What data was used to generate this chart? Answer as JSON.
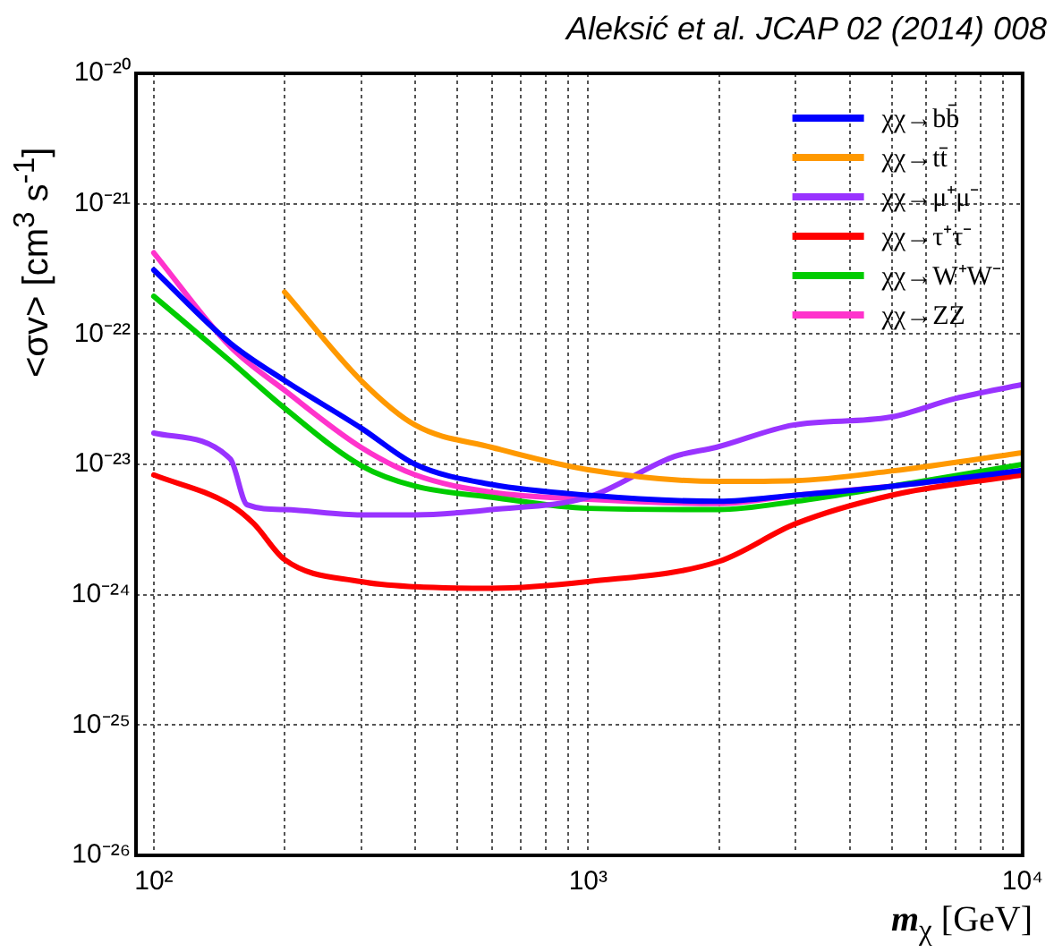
{
  "chart_data": {
    "type": "line",
    "xlabel": "m$_{χ}$ [GeV]",
    "ylabel": "<σv> [cm$^{3}$ s$^{-1}$]",
    "annotations": [
      "Aleksić et al. JCAP 02 (2014) 008"
    ],
    "log": "xy",
    "grid": true,
    "legend": "top right",
    "marker": "none",
    "line_style": "solid",
    "xlim": [
      91,
      10000
    ],
    "ylim": [
      1e-26,
      1e-20
    ],
    "xticks": [
      {
        "value": 100,
        "label": "10²"
      },
      {
        "value": 200,
        "label": null
      },
      {
        "value": 300,
        "label": null
      },
      {
        "value": 400,
        "label": null
      },
      {
        "value": 500,
        "label": null
      },
      {
        "value": 600,
        "label": null
      },
      {
        "value": 700,
        "label": null
      },
      {
        "value": 800,
        "label": null
      },
      {
        "value": 900,
        "label": null
      },
      {
        "value": 1000,
        "label": "10³"
      },
      {
        "value": 2000,
        "label": null
      },
      {
        "value": 3000,
        "label": null
      },
      {
        "value": 4000,
        "label": null
      },
      {
        "value": 5000,
        "label": null
      },
      {
        "value": 6000,
        "label": null
      },
      {
        "value": 7000,
        "label": null
      },
      {
        "value": 8000,
        "label": null
      },
      {
        "value": 9000,
        "label": null
      },
      {
        "value": 10000,
        "label": "10⁴"
      }
    ],
    "yticks": [
      {
        "value": 1e-26,
        "label": "10⁻²⁶"
      },
      {
        "value": 1e-25,
        "label": "10⁻²⁵"
      },
      {
        "value": 1e-24,
        "label": "10⁻²⁴"
      },
      {
        "value": 1e-23,
        "label": "10⁻²³"
      },
      {
        "value": 1e-22,
        "label": "10⁻²²"
      },
      {
        "value": 1e-21,
        "label": "10⁻²¹"
      },
      {
        "value": 1e-20,
        "label": "10⁻²⁰"
      }
    ],
    "x": [
      100,
      150,
      200,
      300,
      400,
      600,
      1000,
      2000,
      3000,
      5000,
      10000
    ],
    "series": [
      {
        "name": "χχ→bb̄",
        "color": "#0000ff",
        "values": [
          3.1e-22,
          8.5e-23,
          4.4e-23,
          1.9e-23,
          1e-23,
          7e-24,
          5.8e-24,
          5.2e-24,
          5.8e-24,
          6.8e-24,
          9e-24
        ]
      },
      {
        "name": "χχ→tt̄",
        "color": "#ff9900",
        "values": [
          null,
          null,
          2.1e-22,
          4.4e-23,
          2e-23,
          1.35e-23,
          9.1e-24,
          7.4e-24,
          7.5e-24,
          8.9e-24,
          1.23e-23
        ]
      },
      {
        "name": "χχ→μ⁺μ⁻",
        "color": "#9933ff",
        "x": [
          100,
          150,
          164,
          200,
          300,
          400,
          600,
          1000,
          1580,
          1970,
          2960,
          4950,
          7000,
          10000
        ],
        "values": [
          1.74e-23,
          1.1e-23,
          4.9e-24,
          4.5e-24,
          4.1e-24,
          4.1e-24,
          4.5e-24,
          5.6e-24,
          1.15e-23,
          1.35e-23,
          2e-23,
          2.3e-23,
          3.2e-23,
          4.1e-23
        ]
      },
      {
        "name": "χχ→τ⁺τ⁻",
        "color": "#ff0000",
        "x": [
          100,
          150,
          170,
          200,
          300,
          400,
          600,
          1000,
          2000,
          3000,
          5000,
          10000
        ],
        "values": [
          8.3e-24,
          4.9e-24,
          3.5e-24,
          1.86e-24,
          1.26e-24,
          1.15e-24,
          1.12e-24,
          1.26e-24,
          1.8e-24,
          3.5e-24,
          5.8e-24,
          8.3e-24
        ]
      },
      {
        "name": "χχ→W⁺W⁻",
        "color": "#00cc00",
        "values": [
          1.95e-22,
          6.2e-23,
          2.7e-23,
          9.8e-24,
          6.8e-24,
          5.6e-24,
          4.6e-24,
          4.5e-24,
          5.2e-24,
          6.8e-24,
          1e-23
        ]
      },
      {
        "name": "χχ→ZZ",
        "color": "#ff33cc",
        "values": [
          4.2e-22,
          8e-23,
          3.7e-23,
          1.35e-23,
          8.3e-24,
          6.1e-24,
          5.4e-24,
          5e-24,
          5.8e-24,
          6.8e-24,
          8.8e-24
        ]
      }
    ]
  }
}
